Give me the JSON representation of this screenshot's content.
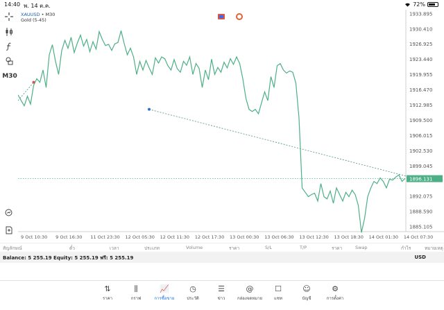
{
  "status_bar": {
    "time": "14:40",
    "date": "พ. 14 ต.ค.",
    "battery": "72%",
    "battery_fraction": 0.72
  },
  "left_toolbar": {
    "timeframe": "M30"
  },
  "chart_header": {
    "symbol": "XAUUSD",
    "timeframe_suffix": " • M30",
    "indicator": "Gold (5-45)"
  },
  "chart_data": {
    "type": "line",
    "price_labels": [
      "1933.895",
      "1930.410",
      "1926.925",
      "1923.440",
      "1919.955",
      "1916.470",
      "1912.985",
      "1909.500",
      "1906.015",
      "1902.530",
      "1899.045",
      "1892.075",
      "1888.590",
      "1885.105"
    ],
    "current_price": "1896.131",
    "time_labels": [
      "9 Oct 10:30",
      "9 Oct 16:30",
      "11 Oct 23:30",
      "12 Oct 05:30",
      "12 Oct 11:30",
      "12 Oct 17:30",
      "13 Oct 00:30",
      "13 Oct 06:30",
      "13 Oct 12:30",
      "13 Oct 18:30",
      "14 Oct 01:30",
      "14 Oct 07:30"
    ],
    "ylim": [
      1884.0,
      1934.5
    ],
    "series_color": "#4caf86",
    "values": [
      1915.3,
      1914.0,
      1912.8,
      1915.0,
      1913.2,
      1917.5,
      1919.0,
      1918.2,
      1921.0,
      1917.0,
      1924.5,
      1926.8,
      1923.0,
      1920.0,
      1925.5,
      1927.8,
      1926.0,
      1928.5,
      1925.0,
      1927.2,
      1929.0,
      1926.5,
      1928.0,
      1925.2,
      1927.5,
      1925.8,
      1929.8,
      1928.0,
      1926.6,
      1926.9,
      1925.5,
      1927.0,
      1927.3,
      1930.0,
      1927.1,
      1924.5,
      1926.0,
      1924.0,
      1920.0,
      1923.0,
      1921.0,
      1923.2,
      1921.5,
      1920.0,
      1923.8,
      1922.6,
      1924.0,
      1923.6,
      1922.0,
      1921.0,
      1923.4,
      1921.3,
      1920.5,
      1923.0,
      1922.1,
      1924.0,
      1920.0,
      1922.5,
      1921.4,
      1917.0,
      1921.0,
      1918.8,
      1923.5,
      1920.0,
      1921.6,
      1920.5,
      1922.8,
      1921.5,
      1923.6,
      1922.3,
      1924.0,
      1922.5,
      1919.0,
      1914.5,
      1912.0,
      1911.5,
      1912.0,
      1911.0,
      1913.5,
      1916.0,
      1914.0,
      1919.5,
      1917.0,
      1922.0,
      1922.5,
      1921.0,
      1920.3,
      1920.8,
      1920.5,
      1918.0,
      1910.0,
      1894.0,
      1893.0,
      1892.0,
      1892.5,
      1892.8,
      1891.0,
      1895.0,
      1892.0,
      1891.5,
      1893.3,
      1890.5,
      1894.0,
      1892.5,
      1891.0,
      1893.0,
      1892.0,
      1893.5,
      1892.5,
      1890.0,
      1883.8,
      1887.0,
      1892.0,
      1894.0,
      1895.5,
      1895.0,
      1896.3,
      1895.5,
      1894.0,
      1896.0,
      1895.8,
      1896.5,
      1897.0,
      1895.5,
      1896.2
    ],
    "trendline_1": {
      "start_index": 0,
      "start_value": 1914.0,
      "end_index": 5,
      "end_value": 1918.2
    },
    "trendline_2": {
      "start_index": 42,
      "start_value": 1912.0,
      "end_index": 125,
      "end_value": 1896.6
    }
  },
  "positions_header": [
    "สัญลักษณ์",
    "ตั๋ว",
    "เวลา",
    "ประเภท",
    "Volume",
    "ราคา",
    "S/L",
    "T/P",
    "ราคา",
    "Swap",
    "กำไร",
    "หมายเหตุ"
  ],
  "balance": {
    "text": "Balance: 5 255.19 Equity: 5 255.19 ฟรี: 5 255.19",
    "currency": "USD"
  },
  "tabs": [
    {
      "label": "ราคา",
      "icon": "arrows-updown-icon"
    },
    {
      "label": "กราฟ",
      "icon": "candles-icon"
    },
    {
      "label": "การซื้อขาย",
      "icon": "trade-chart-icon",
      "active": true
    },
    {
      "label": "ประวัติ",
      "icon": "history-icon"
    },
    {
      "label": "ข่าว",
      "icon": "news-icon"
    },
    {
      "label": "กล่องจดหมาย",
      "icon": "mail-at-icon"
    },
    {
      "label": "แชท",
      "icon": "chat-icon"
    },
    {
      "label": "บัญชี",
      "icon": "account-icon"
    },
    {
      "label": "การตั้งค่า",
      "icon": "settings-gear-icon"
    }
  ]
}
